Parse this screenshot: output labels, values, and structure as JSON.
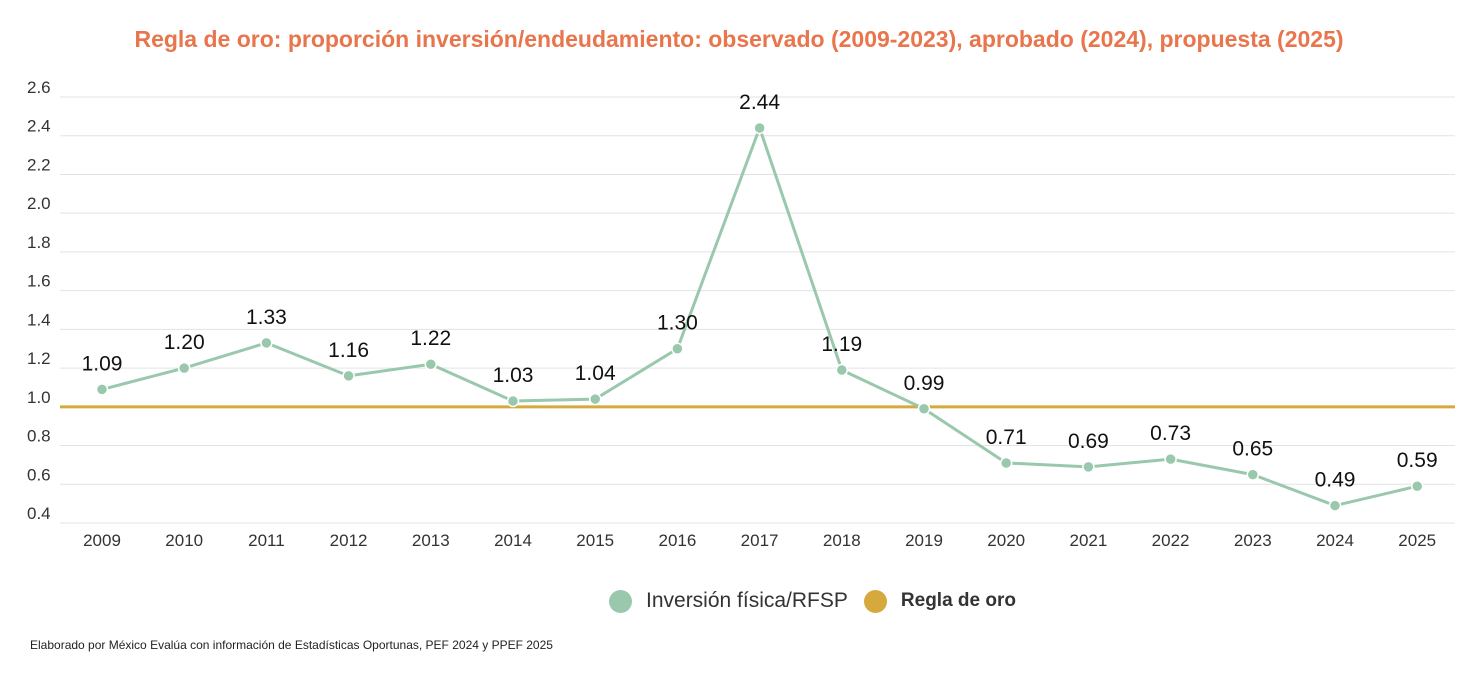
{
  "title": "Regla de oro: proporción inversión/endeudamiento: observado (2009-2023), aprobado (2024), propuesta (2025)",
  "colors": {
    "title": "#e8754c",
    "series": "#9ac8ad",
    "rule": "#d6a93c",
    "grid": "#e3e3e3",
    "text": "#333333"
  },
  "chart_data": {
    "type": "line",
    "categories": [
      "2009",
      "2010",
      "2011",
      "2012",
      "2013",
      "2014",
      "2015",
      "2016",
      "2017",
      "2018",
      "2019",
      "2020",
      "2021",
      "2022",
      "2023",
      "2024",
      "2025"
    ],
    "series": [
      {
        "name": "Inversión física/RFSP",
        "values": [
          1.09,
          1.2,
          1.33,
          1.16,
          1.22,
          1.03,
          1.04,
          1.3,
          2.44,
          1.19,
          0.99,
          0.71,
          0.69,
          0.73,
          0.65,
          0.49,
          0.59
        ]
      },
      {
        "name": "Regla de oro",
        "values": [
          1.0,
          1.0,
          1.0,
          1.0,
          1.0,
          1.0,
          1.0,
          1.0,
          1.0,
          1.0,
          1.0,
          1.0,
          1.0,
          1.0,
          1.0,
          1.0,
          1.0
        ]
      }
    ],
    "data_labels": [
      "1.09",
      "1.20",
      "1.33",
      "1.16",
      "1.22",
      "1.03",
      "1.04",
      "1.30",
      "2.44",
      "1.19",
      "0.99",
      "0.71",
      "0.69",
      "0.73",
      "0.65",
      "0.49",
      "0.59"
    ],
    "yticks": [
      "0.4",
      "0.6",
      "0.8",
      "1.0",
      "1.2",
      "1.4",
      "1.6",
      "1.8",
      "2.0",
      "2.2",
      "2.4",
      "2.6"
    ],
    "ylim": [
      0.4,
      2.6
    ],
    "grid": true,
    "legend_position": "bottom-center"
  },
  "legend": {
    "series1": "Inversión física/RFSP",
    "series2": "Regla de oro"
  },
  "footnote": "Elaborado por México Evalúa con información de Estadísticas Oportunas, PEF 2024 y PPEF 2025"
}
